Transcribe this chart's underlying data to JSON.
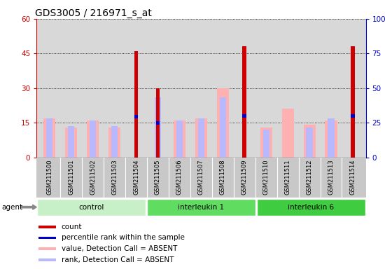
{
  "title": "GDS3005 / 216971_s_at",
  "samples": [
    "GSM211500",
    "GSM211501",
    "GSM211502",
    "GSM211503",
    "GSM211504",
    "GSM211505",
    "GSM211506",
    "GSM211507",
    "GSM211508",
    "GSM211509",
    "GSM211510",
    "GSM211511",
    "GSM211512",
    "GSM211513",
    "GSM211514"
  ],
  "groups": [
    {
      "name": "control",
      "color": "#c8f0c8",
      "indices": [
        0,
        1,
        2,
        3,
        4
      ]
    },
    {
      "name": "interleukin 1",
      "color": "#60dd60",
      "indices": [
        5,
        6,
        7,
        8,
        9
      ]
    },
    {
      "name": "interleukin 6",
      "color": "#40cc40",
      "indices": [
        10,
        11,
        12,
        13,
        14
      ]
    }
  ],
  "count_values": [
    0,
    0,
    0,
    0,
    46,
    30,
    0,
    0,
    0,
    48,
    0,
    0,
    0,
    0,
    48
  ],
  "percentile_values": [
    0,
    0,
    0,
    0,
    30.5,
    26,
    0,
    0,
    0,
    31,
    0,
    0,
    0,
    0,
    31
  ],
  "value_absent": [
    17,
    13,
    16,
    13,
    0,
    0,
    16,
    17,
    30,
    0,
    13,
    21,
    14,
    16,
    0
  ],
  "rank_absent": [
    17,
    13.5,
    16,
    13.5,
    0,
    26,
    16,
    17,
    26,
    0,
    12,
    0,
    13,
    17,
    0
  ],
  "ylim_left": [
    0,
    60
  ],
  "yticks_left": [
    0,
    15,
    30,
    45,
    60
  ],
  "yticks_right": [
    0,
    25,
    50,
    75,
    100
  ],
  "ylabel_left_color": "#cc0000",
  "ylabel_right_color": "#0000cc",
  "count_color": "#cc0000",
  "percentile_color": "#0000cc",
  "value_absent_color": "#ffb0b0",
  "rank_absent_color": "#b8b8ff",
  "plot_bg_color": "#d8d8d8",
  "xlab_bg_color": "#c8c8c8",
  "agent_label": "agent",
  "legend_items": [
    {
      "color": "#cc0000",
      "label": "count"
    },
    {
      "color": "#0000cc",
      "label": "percentile rank within the sample"
    },
    {
      "color": "#ffb0b0",
      "label": "value, Detection Call = ABSENT"
    },
    {
      "color": "#b8b8ff",
      "label": "rank, Detection Call = ABSENT"
    }
  ]
}
